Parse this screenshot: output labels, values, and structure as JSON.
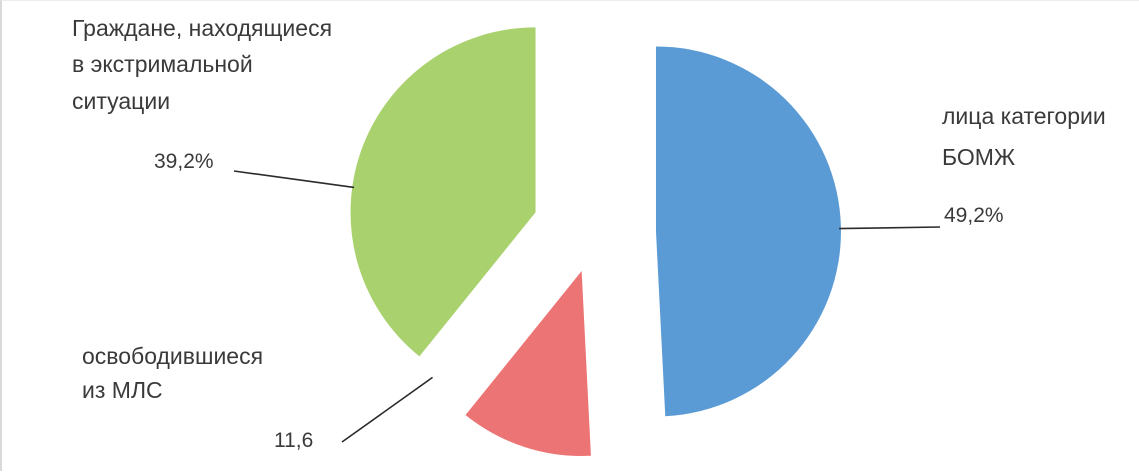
{
  "chart_data": {
    "type": "pie",
    "title": "",
    "slices": [
      {
        "name": "лица категории БОМЖ",
        "label_lines": [
          "лица категории",
          "БОМЖ"
        ],
        "value": 49.2,
        "value_label": "49,2%",
        "color": "#5b9bd5"
      },
      {
        "name": "освободившиеся из МЛС",
        "label_lines": [
          "освободившиеся",
          "из МЛС"
        ],
        "value": 11.6,
        "value_label": "11,6",
        "color": "#ed7474"
      },
      {
        "name": "Граждане, находящиеся в экстримальной ситуации",
        "label_lines": [
          "Граждане, находящиеся",
          "в экстримальной",
          "ситуации"
        ],
        "value": 39.2,
        "value_label": "39,2%",
        "color": "#a9d26f"
      }
    ],
    "exploded": true,
    "legend": "none"
  }
}
